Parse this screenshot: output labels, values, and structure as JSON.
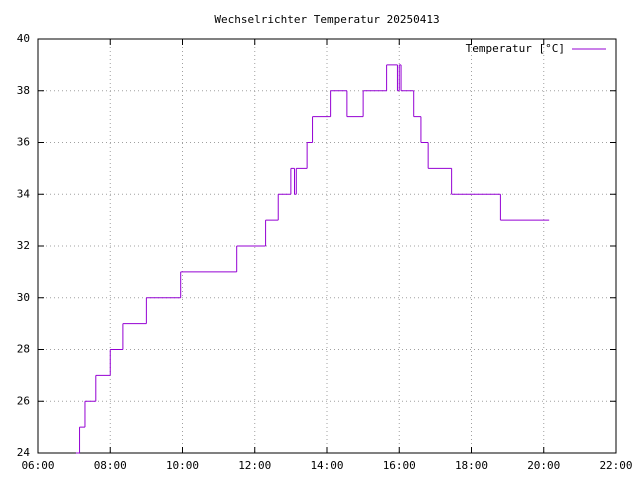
{
  "chart_data": {
    "type": "line",
    "step": true,
    "title": "Wechselrichter Temperatur 20250413",
    "series": [
      {
        "name": "Temperatur [°C]",
        "color": "#9400d3",
        "x": [
          7.05,
          7.15,
          7.3,
          7.6,
          8.0,
          8.35,
          9.0,
          9.95,
          11.5,
          12.3,
          12.65,
          13.0,
          13.1,
          13.15,
          13.45,
          13.6,
          14.1,
          14.55,
          15.0,
          15.65,
          15.95,
          16.0,
          16.05,
          16.4,
          16.6,
          16.8,
          17.45,
          18.8,
          20.15
        ],
        "values": [
          24,
          25,
          26,
          27,
          28,
          29,
          30,
          31,
          32,
          33,
          34,
          35,
          34,
          35,
          36,
          37,
          38,
          37,
          38,
          39,
          38,
          39,
          38,
          37,
          36,
          35,
          34,
          33,
          33
        ]
      }
    ],
    "xlim": [
      6,
      22
    ],
    "xticks": [
      {
        "value": 6,
        "label": "06:00"
      },
      {
        "value": 8,
        "label": "08:00"
      },
      {
        "value": 10,
        "label": "10:00"
      },
      {
        "value": 12,
        "label": "12:00"
      },
      {
        "value": 14,
        "label": "14:00"
      },
      {
        "value": 16,
        "label": "16:00"
      },
      {
        "value": 18,
        "label": "18:00"
      },
      {
        "value": 20,
        "label": "20:00"
      },
      {
        "value": 22,
        "label": "22:00"
      }
    ],
    "ylim": [
      24,
      40
    ],
    "yticks": [
      24,
      26,
      28,
      30,
      32,
      34,
      36,
      38,
      40
    ],
    "grid": true,
    "legend": "top-right"
  }
}
